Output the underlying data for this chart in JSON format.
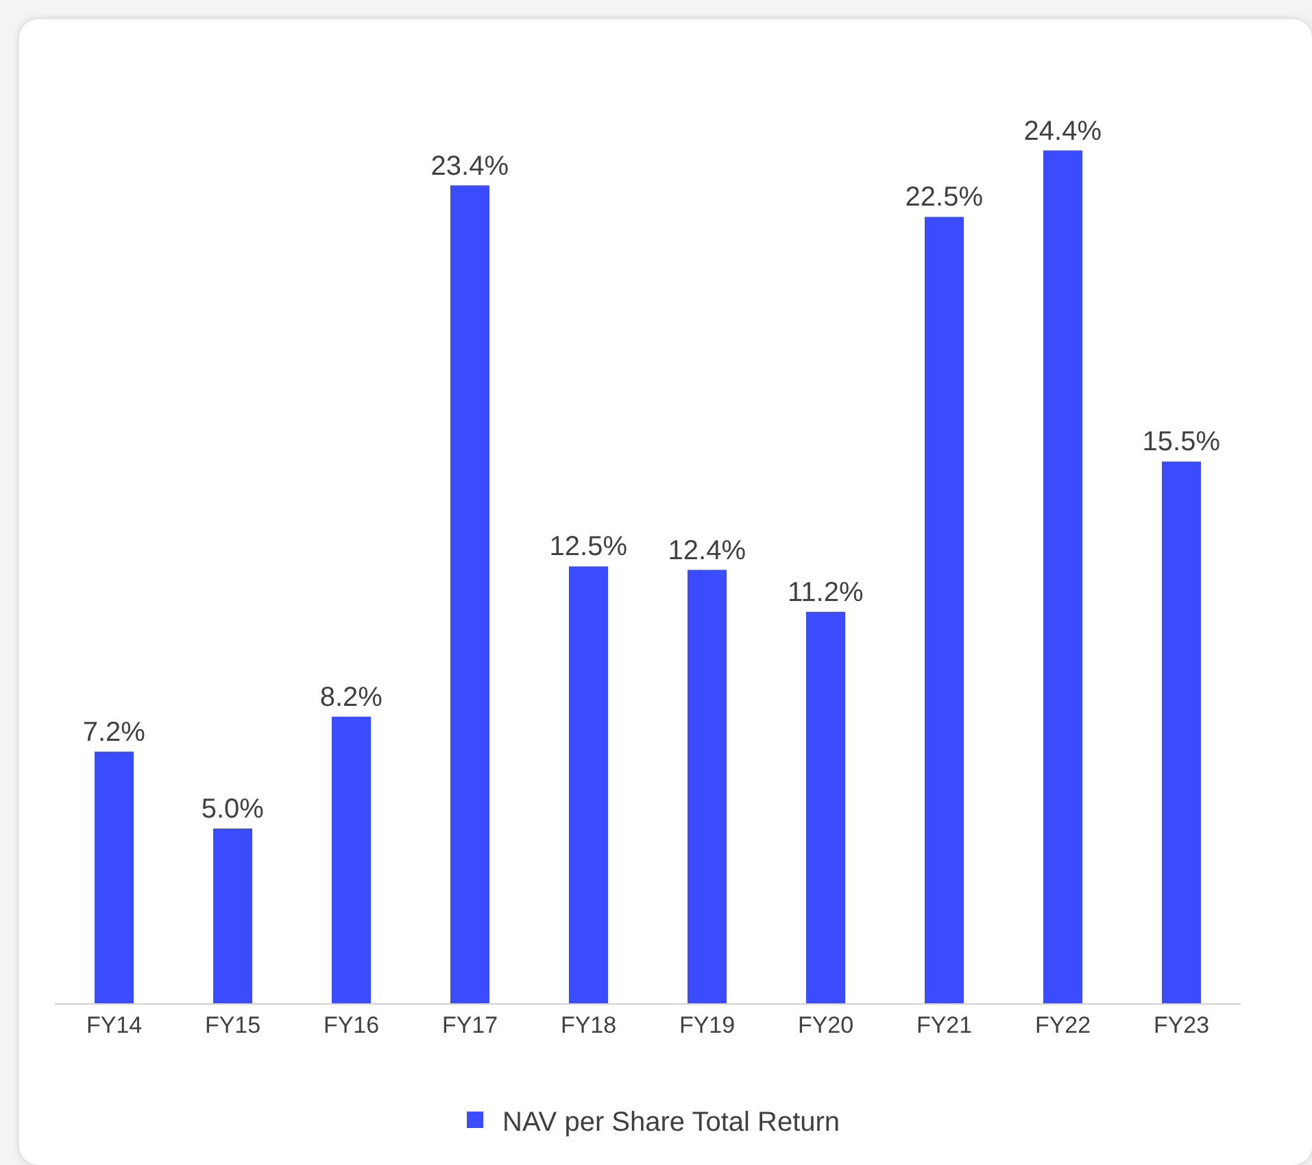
{
  "chart_data": {
    "type": "bar",
    "categories": [
      "FY14",
      "FY15",
      "FY16",
      "FY17",
      "FY18",
      "FY19",
      "FY20",
      "FY21",
      "FY22",
      "FY23"
    ],
    "series": [
      {
        "name": "NAV per Share Total Return",
        "color": "#3b4cff",
        "values": [
          7.2,
          5.0,
          8.2,
          23.4,
          12.5,
          12.4,
          11.2,
          22.5,
          24.4,
          15.5
        ],
        "value_labels": [
          "7.2%",
          "5.0%",
          "8.2%",
          "23.4%",
          "12.5%",
          "12.4%",
          "11.2%",
          "22.5%",
          "24.4%",
          "15.5%"
        ]
      }
    ],
    "tick_labels": "x",
    "grid": false,
    "legend": "bottom"
  }
}
